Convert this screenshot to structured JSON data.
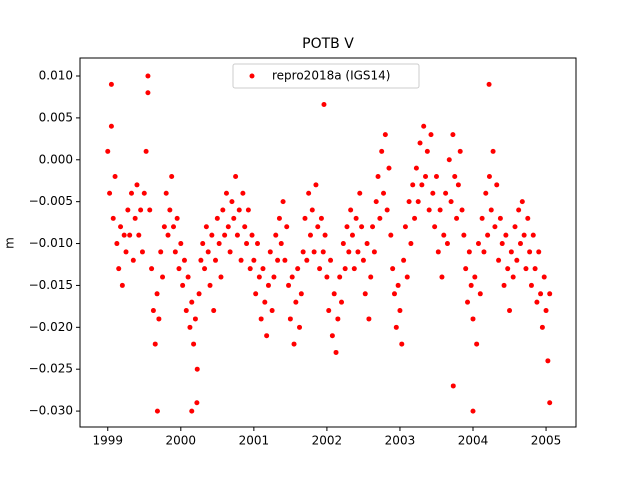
{
  "chart_data": {
    "type": "scatter",
    "title": "POTB V",
    "y_label": "m",
    "legend_position": "upper center",
    "xlim": [
      1998.62,
      2005.41
    ],
    "xticks": [
      1999,
      2000,
      2001,
      2002,
      2003,
      2004,
      2005
    ],
    "ylim": [
      -0.0319,
      0.01215
    ],
    "yticks": [
      {
        "value": 0.01,
        "label": "0.010"
      },
      {
        "value": 0.005,
        "label": "0.005"
      },
      {
        "value": 0,
        "label": "0.000"
      },
      {
        "value": -0.005,
        "label": "−0.005"
      },
      {
        "value": -0.01,
        "label": "−0.010"
      },
      {
        "value": -0.015,
        "label": "−0.015"
      },
      {
        "value": -0.02,
        "label": "−0.020"
      },
      {
        "value": -0.025,
        "label": "−0.025"
      },
      {
        "value": -0.03,
        "label": "−0.030"
      }
    ],
    "series": [
      {
        "name": "repro2018a (IGS14)",
        "color": "#ff0000",
        "x": [
          1999.0,
          1999.025,
          1999.05,
          1999.075,
          1999.1,
          1999.125,
          1999.15,
          1999.175,
          1999.2,
          1999.225,
          1999.25,
          1999.275,
          1999.3,
          1999.325,
          1999.35,
          1999.375,
          1999.4,
          1999.425,
          1999.45,
          1999.475,
          1999.5,
          1999.525,
          1999.55,
          1999.575,
          1999.6,
          1999.625,
          1999.65,
          1999.675,
          1999.7,
          1999.725,
          1999.75,
          1999.775,
          1999.8,
          1999.825,
          1999.85,
          1999.875,
          1999.9,
          1999.925,
          1999.95,
          1999.975,
          2000.0,
          2000.025,
          2000.05,
          2000.075,
          2000.1,
          2000.125,
          2000.15,
          2000.175,
          2000.2,
          2000.225,
          2000.25,
          2000.275,
          2000.3,
          2000.325,
          2000.35,
          2000.375,
          2000.4,
          2000.425,
          2000.45,
          2000.475,
          2000.5,
          2000.525,
          2000.55,
          2000.575,
          2000.6,
          2000.625,
          2000.65,
          2000.675,
          2000.7,
          2000.725,
          2000.75,
          2000.775,
          2000.8,
          2000.825,
          2000.85,
          2000.875,
          2000.9,
          2000.925,
          2000.95,
          2000.975,
          2001.0,
          2001.025,
          2001.05,
          2001.075,
          2001.1,
          2001.125,
          2001.15,
          2001.175,
          2001.2,
          2001.225,
          2001.25,
          2001.275,
          2001.3,
          2001.325,
          2001.35,
          2001.375,
          2001.4,
          2001.425,
          2001.45,
          2001.475,
          2001.5,
          2001.525,
          2001.55,
          2001.575,
          2001.6,
          2001.625,
          2001.65,
          2001.675,
          2001.7,
          2001.725,
          2001.75,
          2001.775,
          2001.8,
          2001.825,
          2001.85,
          2001.875,
          2001.9,
          2001.925,
          2001.95,
          2001.975,
          2002.0,
          2002.025,
          2002.05,
          2002.075,
          2002.1,
          2002.125,
          2002.15,
          2002.175,
          2002.2,
          2002.225,
          2002.25,
          2002.275,
          2002.3,
          2002.325,
          2002.35,
          2002.375,
          2002.4,
          2002.425,
          2002.45,
          2002.475,
          2002.5,
          2002.525,
          2002.55,
          2002.575,
          2002.6,
          2002.625,
          2002.65,
          2002.675,
          2002.7,
          2002.725,
          2002.75,
          2002.775,
          2002.8,
          2002.825,
          2002.85,
          2002.875,
          2002.9,
          2002.925,
          2002.95,
          2002.975,
          2003.0,
          2003.025,
          2003.05,
          2003.075,
          2003.1,
          2003.125,
          2003.15,
          2003.175,
          2003.2,
          2003.225,
          2003.25,
          2003.275,
          2003.3,
          2003.325,
          2003.35,
          2003.375,
          2003.4,
          2003.425,
          2003.45,
          2003.475,
          2003.5,
          2003.525,
          2003.55,
          2003.575,
          2003.6,
          2003.625,
          2003.65,
          2003.675,
          2003.7,
          2003.725,
          2003.75,
          2003.775,
          2003.8,
          2003.825,
          2003.85,
          2003.875,
          2003.9,
          2003.925,
          2003.95,
          2003.975,
          2004.0,
          2004.025,
          2004.05,
          2004.075,
          2004.1,
          2004.125,
          2004.15,
          2004.175,
          2004.2,
          2004.225,
          2004.25,
          2004.275,
          2004.3,
          2004.325,
          2004.35,
          2004.375,
          2004.4,
          2004.425,
          2004.45,
          2004.475,
          2004.5,
          2004.525,
          2004.55,
          2004.575,
          2004.6,
          2004.625,
          2004.65,
          2004.675,
          2004.7,
          2004.725,
          2004.75,
          2004.775,
          2004.8,
          2004.825,
          2004.85,
          2004.875,
          2004.9,
          2004.925,
          2004.95,
          2004.975,
          2005.0,
          2005.025,
          2005.05,
          1999.68,
          2000.15,
          2000.22,
          1999.55,
          2004.0,
          2004.22,
          1999.05,
          2001.96,
          2005.05,
          2003.73
        ],
        "values": [
          0.001,
          -0.004,
          0.004,
          -0.007,
          -0.002,
          -0.01,
          -0.013,
          -0.008,
          -0.015,
          -0.009,
          -0.011,
          -0.006,
          -0.009,
          -0.004,
          -0.012,
          -0.007,
          -0.003,
          -0.009,
          -0.006,
          -0.011,
          -0.004,
          0.001,
          0.008,
          -0.006,
          -0.013,
          -0.018,
          -0.022,
          -0.016,
          -0.019,
          -0.011,
          -0.014,
          -0.008,
          -0.004,
          -0.009,
          -0.006,
          -0.002,
          -0.008,
          -0.011,
          -0.007,
          -0.013,
          -0.01,
          -0.015,
          -0.012,
          -0.018,
          -0.014,
          -0.02,
          -0.017,
          -0.022,
          -0.019,
          -0.025,
          -0.016,
          -0.012,
          -0.01,
          -0.013,
          -0.008,
          -0.011,
          -0.015,
          -0.009,
          -0.018,
          -0.012,
          -0.007,
          -0.01,
          -0.014,
          -0.006,
          -0.009,
          -0.004,
          -0.008,
          -0.011,
          -0.005,
          -0.007,
          -0.002,
          -0.009,
          -0.006,
          -0.012,
          -0.004,
          -0.008,
          -0.01,
          -0.006,
          -0.013,
          -0.009,
          -0.012,
          -0.016,
          -0.01,
          -0.014,
          -0.019,
          -0.013,
          -0.017,
          -0.021,
          -0.015,
          -0.011,
          -0.018,
          -0.014,
          -0.009,
          -0.012,
          -0.007,
          -0.01,
          -0.005,
          -0.012,
          -0.008,
          -0.015,
          -0.019,
          -0.014,
          -0.022,
          -0.017,
          -0.013,
          -0.02,
          -0.016,
          -0.011,
          -0.007,
          -0.012,
          -0.004,
          -0.009,
          -0.006,
          -0.011,
          -0.003,
          -0.008,
          -0.013,
          -0.007,
          -0.011,
          -0.009,
          -0.014,
          -0.018,
          -0.012,
          -0.021,
          -0.016,
          -0.023,
          -0.019,
          -0.014,
          -0.017,
          -0.01,
          -0.013,
          -0.008,
          -0.011,
          -0.006,
          -0.009,
          -0.013,
          -0.007,
          -0.011,
          -0.004,
          -0.008,
          -0.012,
          -0.016,
          -0.01,
          -0.019,
          -0.014,
          -0.008,
          -0.011,
          -0.005,
          -0.002,
          -0.007,
          0.001,
          -0.004,
          0.003,
          -0.006,
          -0.001,
          -0.009,
          -0.013,
          -0.016,
          -0.02,
          -0.015,
          -0.018,
          -0.022,
          -0.012,
          -0.008,
          -0.014,
          -0.005,
          -0.01,
          -0.003,
          -0.007,
          -0.001,
          -0.005,
          0.002,
          -0.003,
          0.004,
          -0.002,
          0.001,
          -0.006,
          0.003,
          -0.004,
          -0.008,
          -0.002,
          -0.011,
          -0.006,
          -0.014,
          -0.009,
          -0.004,
          -0.01,
          0.0,
          -0.005,
          0.003,
          -0.002,
          -0.007,
          -0.003,
          0.001,
          -0.006,
          -0.009,
          -0.013,
          -0.017,
          -0.011,
          -0.015,
          -0.019,
          -0.014,
          -0.022,
          -0.01,
          -0.016,
          -0.007,
          -0.011,
          -0.004,
          -0.009,
          -0.002,
          -0.006,
          0.001,
          -0.008,
          -0.003,
          -0.012,
          -0.007,
          -0.01,
          -0.015,
          -0.009,
          -0.013,
          -0.018,
          -0.011,
          -0.014,
          -0.008,
          -0.012,
          -0.006,
          -0.01,
          -0.005,
          -0.009,
          -0.013,
          -0.007,
          -0.011,
          -0.015,
          -0.009,
          -0.013,
          -0.017,
          -0.011,
          -0.016,
          -0.02,
          -0.014,
          -0.018,
          -0.024,
          -0.016,
          -0.03,
          -0.03,
          -0.029,
          0.01,
          -0.03,
          0.009,
          0.009,
          0.0066,
          -0.029,
          -0.027
        ]
      }
    ]
  }
}
